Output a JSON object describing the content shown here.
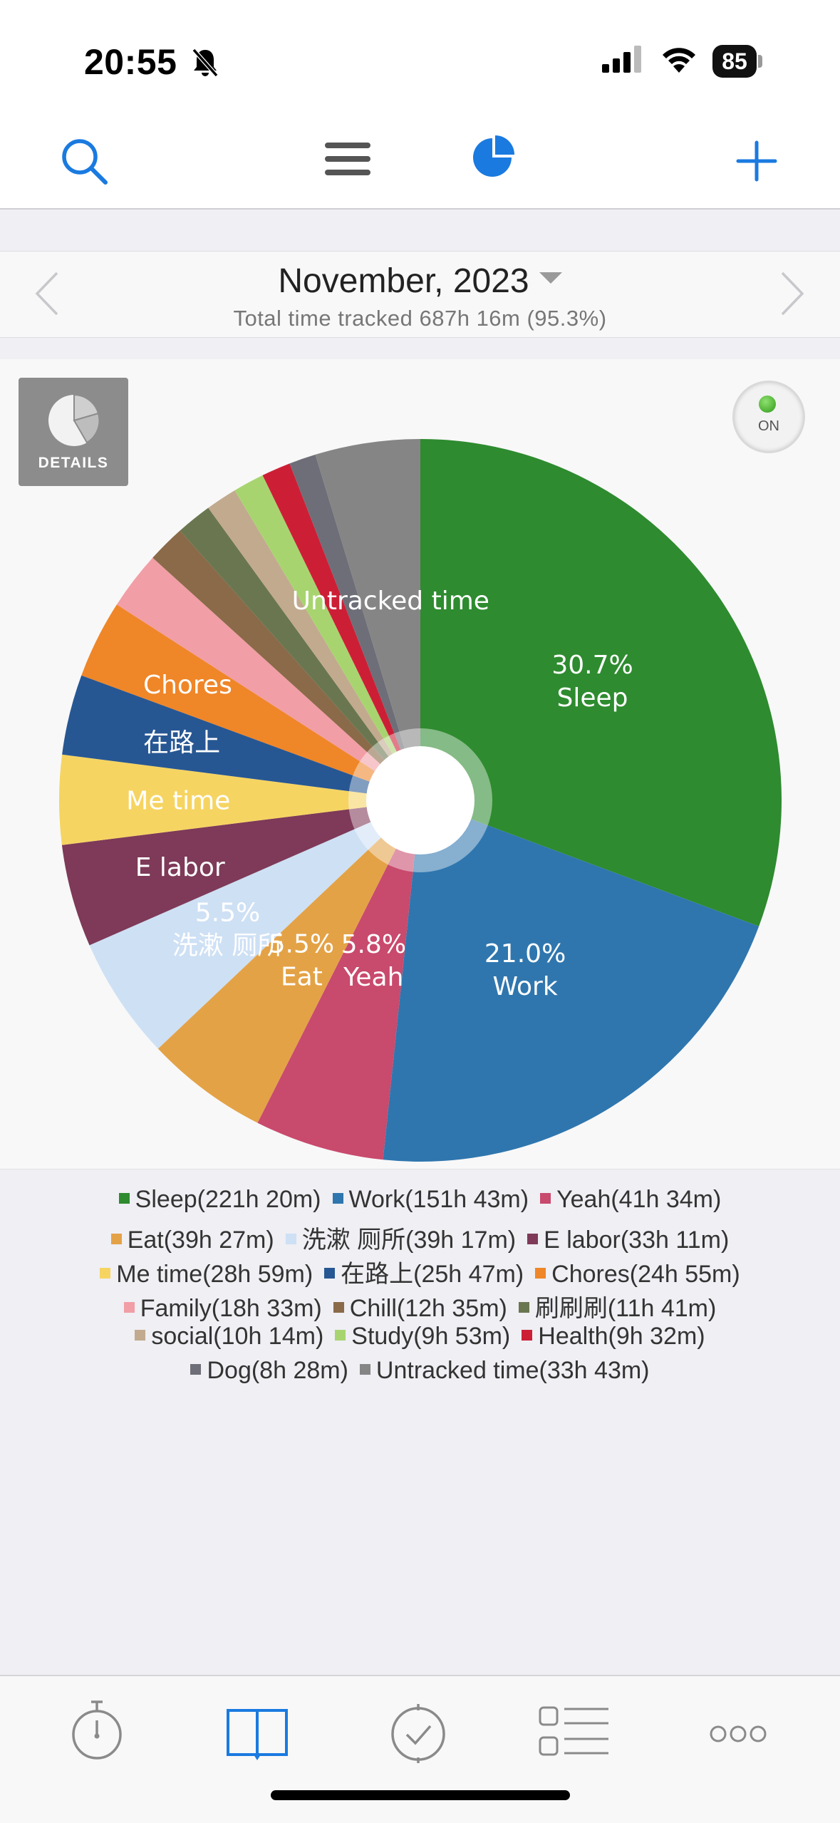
{
  "status_bar": {
    "time": "20:55",
    "battery": "85"
  },
  "month": {
    "title": "November, 2023",
    "subtitle": "Total time tracked 687h 16m (95.3%)"
  },
  "details_button": {
    "label": "DETAILS"
  },
  "toggle": {
    "label": "ON"
  },
  "icons": {
    "search": "search-icon",
    "menu": "menu-icon",
    "pie": "pie-chart-icon",
    "add": "plus-icon",
    "prev": "chevron-left-icon",
    "next": "chevron-right-icon",
    "tabs": [
      "stopwatch-icon",
      "book-icon",
      "clock-check-icon",
      "list-icon",
      "more-icon"
    ]
  },
  "colors": {
    "accent": "#1a7ae0"
  },
  "chart_data": {
    "type": "pie",
    "series": [
      {
        "name": "Sleep",
        "duration": "221h 20m",
        "percent": 30.7,
        "color": "#2e8b2f"
      },
      {
        "name": "Work",
        "duration": "151h 43m",
        "percent": 21.0,
        "color": "#2f76ae"
      },
      {
        "name": "Yeah",
        "duration": "41h 34m",
        "percent": 5.8,
        "color": "#c84a6d"
      },
      {
        "name": "Eat",
        "duration": "39h 27m",
        "percent": 5.5,
        "color": "#e4a246"
      },
      {
        "name": "洗漱 厕所",
        "duration": "39h 17m",
        "percent": 5.5,
        "color": "#cee0f4"
      },
      {
        "name": "E labor",
        "duration": "33h 11m",
        "percent": 4.6,
        "color": "#7e3a58"
      },
      {
        "name": "Me time",
        "duration": "28h 59m",
        "percent": 4.0,
        "color": "#f6d462"
      },
      {
        "name": "在路上",
        "duration": "25h 47m",
        "percent": 3.6,
        "color": "#275793"
      },
      {
        "name": "Chores",
        "duration": "24h 55m",
        "percent": 3.5,
        "color": "#ef8628"
      },
      {
        "name": "Family",
        "duration": "18h 33m",
        "percent": 2.6,
        "color": "#f29ea6"
      },
      {
        "name": "Chill",
        "duration": "12h 35m",
        "percent": 1.7,
        "color": "#8a6a48"
      },
      {
        "name": "刷刷刷",
        "duration": "11h 41m",
        "percent": 1.6,
        "color": "#6a7650"
      },
      {
        "name": "social",
        "duration": "10h 14m",
        "percent": 1.4,
        "color": "#c2aa8e"
      },
      {
        "name": "Study",
        "duration": "9h 53m",
        "percent": 1.4,
        "color": "#a8d470"
      },
      {
        "name": "Health",
        "duration": "9h 32m",
        "percent": 1.3,
        "color": "#cc1f36"
      },
      {
        "name": "Dog",
        "duration": "8h 28m",
        "percent": 1.2,
        "color": "#6e6e78"
      },
      {
        "name": "Untracked time",
        "duration": "33h 43m",
        "percent": 4.7,
        "color": "#858585"
      }
    ],
    "slice_labels": [
      {
        "slice": "Sleep",
        "lines": [
          "30.7%",
          "Sleep"
        ]
      },
      {
        "slice": "Work",
        "lines": [
          "21.0%",
          "Work"
        ]
      },
      {
        "slice": "Yeah",
        "lines": [
          "5.8%",
          "Yeah"
        ]
      },
      {
        "slice": "Eat",
        "lines": [
          "5.5%",
          "Eat"
        ]
      },
      {
        "slice": "洗漱 厕所",
        "lines": [
          "5.5%",
          "洗漱 厕所"
        ]
      },
      {
        "slice": "E labor",
        "lines": [
          "E labor"
        ]
      },
      {
        "slice": "Me time",
        "lines": [
          "Me time"
        ]
      },
      {
        "slice": "在路上",
        "lines": [
          "在路上"
        ]
      },
      {
        "slice": "Chores",
        "lines": [
          "Chores"
        ]
      },
      {
        "slice": "Untracked time",
        "lines": [
          "Untracked time"
        ]
      }
    ],
    "legend_rows": [
      [
        "Sleep",
        "Work",
        "Yeah"
      ],
      [
        "Eat",
        "洗漱 厕所",
        "E labor"
      ],
      [
        "Me time",
        "在路上",
        "Chores"
      ],
      [
        "Family",
        "Chill",
        "刷刷刷"
      ],
      [
        "social",
        "Study",
        "Health"
      ],
      [
        "Dog",
        "Untracked time"
      ]
    ]
  }
}
